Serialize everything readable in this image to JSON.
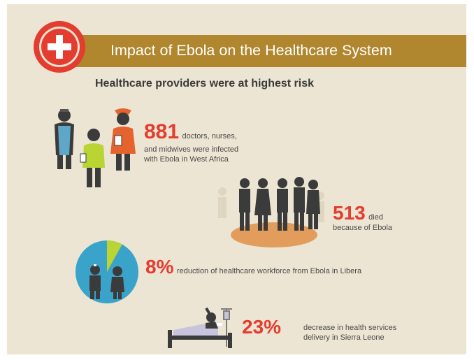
{
  "colors": {
    "accent_red": "#e43c2f",
    "banner_gold": "#b0862f",
    "background": "#ede5d3",
    "dark_figure": "#3b3b3b",
    "pie_blue": "#3aa3c9",
    "pie_green": "#b9d433"
  },
  "header": {
    "title": "Impact of Ebola on the Healthcare System",
    "icon": "red-cross-icon"
  },
  "subtitle": "Healthcare providers were at highest risk",
  "stats": [
    {
      "value": "881",
      "text_line1": "doctors, nurses,",
      "text_line2": "and midwives were infected",
      "text_line3": "with Ebola in West Africa",
      "icon": "healthcare-workers-icon"
    },
    {
      "value": "513",
      "text_line1": "died",
      "text_line2": "because of Ebola",
      "icon": "group-deaths-icon"
    },
    {
      "value": "8%",
      "text": "reduction of healthcare workforce from Ebola in Libera",
      "icon": "workforce-pie-icon",
      "pie_fraction": 0.08
    },
    {
      "value": "23%",
      "text_line1": "decrease in health services",
      "text_line2": "delivery in Sierra Leone",
      "icon": "hospital-bed-patient-icon"
    }
  ]
}
